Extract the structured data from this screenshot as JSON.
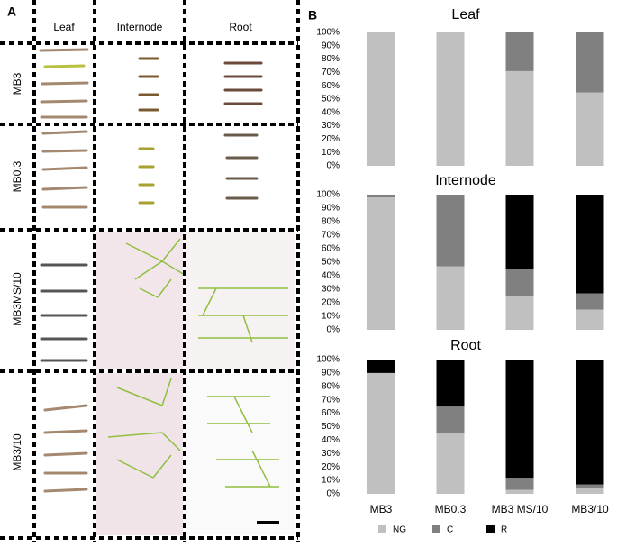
{
  "panel_labels": [
    "A",
    "B"
  ],
  "panel_a": {
    "columns": [
      "Leaf",
      "Internode",
      "Root"
    ],
    "rows": [
      "MB3",
      "MB0.3",
      "MB3MS/10",
      "MB3/10"
    ]
  },
  "chart_data": {
    "type": "bar",
    "stacked": true,
    "categories": [
      "MB3",
      "MB0.3",
      "MB3 MS/10",
      "MB3/10"
    ],
    "series": [
      {
        "name": "NG",
        "color": "#c0c0c0"
      },
      {
        "name": "C",
        "color": "#808080"
      },
      {
        "name": "R",
        "color": "#000000"
      }
    ],
    "ylim": [
      0,
      100
    ],
    "yticks": [
      {
        "value": 0,
        "label": "0%"
      },
      {
        "value": 10,
        "label": "10%"
      },
      {
        "value": 20,
        "label": "20%"
      },
      {
        "value": 30,
        "label": "30%"
      },
      {
        "value": 40,
        "label": "40%"
      },
      {
        "value": 50,
        "label": "50%"
      },
      {
        "value": 60,
        "label": "60%"
      },
      {
        "value": 70,
        "label": "70%"
      },
      {
        "value": 80,
        "label": "80%"
      },
      {
        "value": 90,
        "label": "90%"
      },
      {
        "value": 100,
        "label": "100%"
      }
    ],
    "charts": [
      {
        "title": "Leaf",
        "values": [
          [
            100,
            100,
            71,
            55
          ],
          [
            0,
            0,
            29,
            45
          ],
          [
            0,
            0,
            0,
            0
          ]
        ]
      },
      {
        "title": "Internode",
        "values": [
          [
            98,
            47,
            25,
            15
          ],
          [
            2,
            53,
            20,
            12
          ],
          [
            0,
            0,
            55,
            73
          ]
        ]
      },
      {
        "title": "Root",
        "values": [
          [
            90,
            45,
            3,
            4
          ],
          [
            0,
            20,
            9,
            3
          ],
          [
            10,
            35,
            88,
            93
          ]
        ]
      }
    ]
  }
}
